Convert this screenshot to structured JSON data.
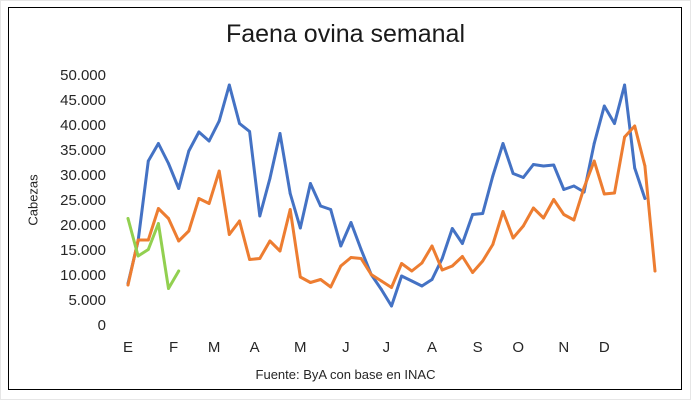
{
  "chart_data": {
    "type": "line",
    "title": "Faena ovina semanal",
    "ylabel": "Cabezas",
    "source": "Fuente: ByA con base en INAC",
    "ylim": [
      0,
      50000
    ],
    "yticks": [
      "0",
      "5.000",
      "10.000",
      "15.000",
      "20.000",
      "25.000",
      "30.000",
      "35.000",
      "40.000",
      "45.000",
      "50.000"
    ],
    "xticks": [
      "E",
      "F",
      "M",
      "A",
      "M",
      "J",
      "J",
      "A",
      "S",
      "O",
      "N",
      "D"
    ],
    "week_axis": [
      1,
      53
    ],
    "month_tick_weeks": [
      1,
      5.5,
      9.5,
      13.5,
      18,
      22.5,
      26.5,
      31,
      35.5,
      39.5,
      44,
      48
    ],
    "grid": false,
    "legend": "none",
    "series": [
      {
        "color": "#4472c4",
        "values": [
          8500,
          17000,
          33000,
          36500,
          32500,
          27500,
          35000,
          38800,
          37000,
          41000,
          48200,
          40500,
          38900,
          22000,
          29500,
          38500,
          26500,
          19600,
          28500,
          24000,
          23300,
          16000,
          20700,
          15300,
          10300,
          7300,
          4000,
          10000,
          9000,
          8000,
          9300,
          13500,
          19500,
          16500,
          22300,
          22500,
          30000,
          36500,
          30500,
          29700,
          32300,
          32000,
          32200,
          27300,
          28000,
          26800,
          36500,
          44000,
          40500,
          48200,
          31600,
          25500
        ]
      },
      {
        "color": "#ed7d31",
        "values": [
          8200,
          17200,
          17200,
          23500,
          21500,
          17000,
          19000,
          25500,
          24500,
          31000,
          18300,
          21000,
          13300,
          13500,
          17000,
          15000,
          23300,
          9800,
          8700,
          9300,
          7800,
          12000,
          13700,
          13500,
          10300,
          9000,
          7700,
          12500,
          11000,
          12600,
          16000,
          11200,
          12000,
          13900,
          10700,
          13000,
          16300,
          22900,
          17600,
          20000,
          23600,
          21600,
          25300,
          22300,
          21200,
          27700,
          33000,
          26400,
          26600,
          37800,
          40000,
          32000,
          11000
        ]
      },
      {
        "color": "#92d050",
        "values": [
          21500,
          14000,
          15300,
          20500,
          7500,
          11000
        ]
      }
    ]
  }
}
